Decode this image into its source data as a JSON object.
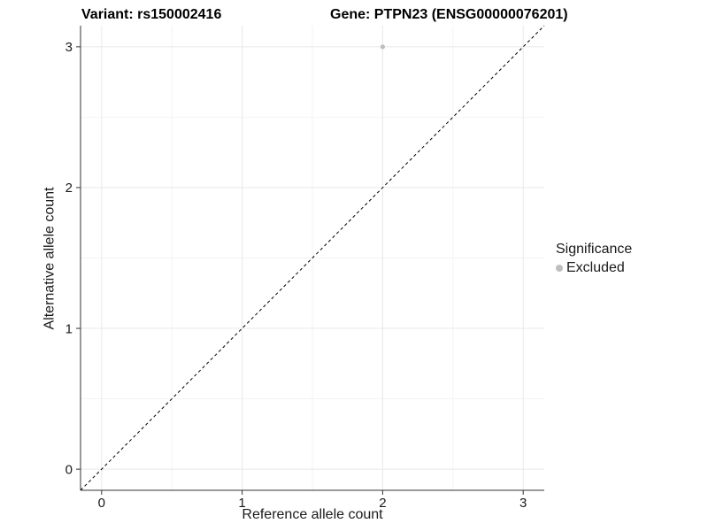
{
  "header": {
    "left_title": "Variant: rs150002416",
    "right_title": "Gene: PTPN23 (ENSG00000076201)"
  },
  "chart_data": {
    "type": "scatter",
    "title": "Variant: rs150002416 / Gene: PTPN23 (ENSG00000076201)",
    "xlabel": "Reference allele count",
    "ylabel": "Alternative allele count",
    "xlim": [
      -0.15,
      3.15
    ],
    "ylim": [
      -0.15,
      3.15
    ],
    "xticks": [
      0,
      1,
      2,
      3
    ],
    "yticks": [
      0,
      1,
      2,
      3
    ],
    "grid": {
      "major_step": 1,
      "minor_step": 0.5,
      "visible": true
    },
    "points": [
      {
        "x": 2,
        "y": 3,
        "series": "Excluded"
      }
    ],
    "reference_line": {
      "kind": "identity y=x",
      "style": "dashed",
      "from": [
        -0.15,
        -0.15
      ],
      "to": [
        3.15,
        3.15
      ]
    },
    "legend": {
      "title": "Significance",
      "position": "right",
      "entries": [
        {
          "label": "Excluded",
          "color": "#bebebe"
        }
      ]
    }
  },
  "colors": {
    "background": "#ffffff",
    "point": "#bebebe",
    "axis_line": "#333333",
    "tick_mark": "#333333",
    "tick_label": "#1a1a1a",
    "grid_major": "#e8e8e8",
    "grid_minor": "#f3f3f3",
    "reference_line": "#000000",
    "title_text": "#000000"
  }
}
